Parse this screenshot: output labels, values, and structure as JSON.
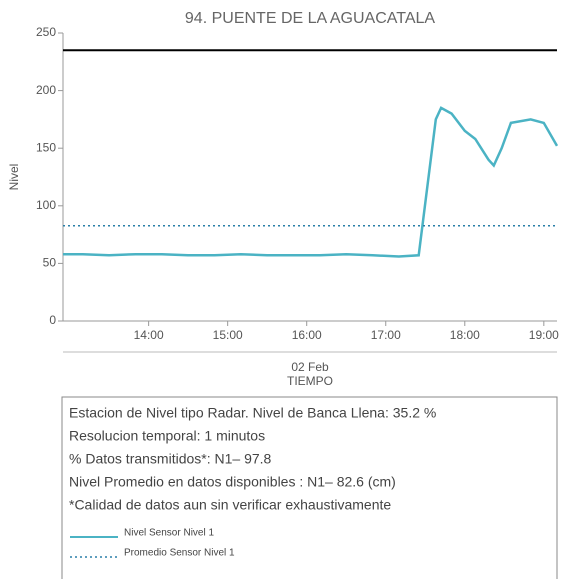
{
  "chart_data": {
    "type": "line",
    "title": "94. PUENTE DE LA AGUACATALA",
    "y_label": "Nivel",
    "x_date": "02 Feb",
    "x_label": "TIEMPO",
    "xlim": [
      "12:55",
      "19:10"
    ],
    "xticks": [
      "14:00",
      "15:00",
      "16:00",
      "17:00",
      "18:00",
      "19:00"
    ],
    "ylim": [
      0,
      250
    ],
    "yticks": [
      0,
      50,
      100,
      150,
      200,
      250
    ],
    "hlines": [
      {
        "value": 235,
        "color": "#000000"
      }
    ],
    "series": [
      {
        "name": "Nivel Sensor Nivel 1",
        "color": "#4bb3c4",
        "style": "solid",
        "x": [
          "12:55",
          "13:10",
          "13:30",
          "13:50",
          "14:10",
          "14:30",
          "14:50",
          "15:10",
          "15:30",
          "15:50",
          "16:10",
          "16:30",
          "16:50",
          "17:10",
          "17:25",
          "17:38",
          "17:42",
          "17:50",
          "18:00",
          "18:08",
          "18:18",
          "18:22",
          "18:28",
          "18:35",
          "18:50",
          "19:00",
          "19:10"
        ],
        "values": [
          58,
          58,
          57,
          58,
          58,
          57,
          57,
          58,
          57,
          57,
          57,
          58,
          57,
          56,
          57,
          175,
          185,
          180,
          165,
          158,
          140,
          135,
          150,
          172,
          175,
          172,
          152
        ]
      },
      {
        "name": "Promedio Sensor Nivel 1",
        "color": "#2a7fa8",
        "style": "dotted",
        "x": [
          "12:55",
          "19:10"
        ],
        "values": [
          82.6,
          82.6
        ]
      }
    ],
    "notes": [
      "Estacion de Nivel tipo Radar. Nivel de Banca Llena: 35.2 %",
      "Resolucion temporal: 1 minutos",
      "% Datos transmitidos*: N1– 97.8",
      "Nivel Promedio en datos disponibles : N1– 82.6 (cm)",
      "*Calidad de datos aun sin verificar exhaustivamente"
    ]
  }
}
